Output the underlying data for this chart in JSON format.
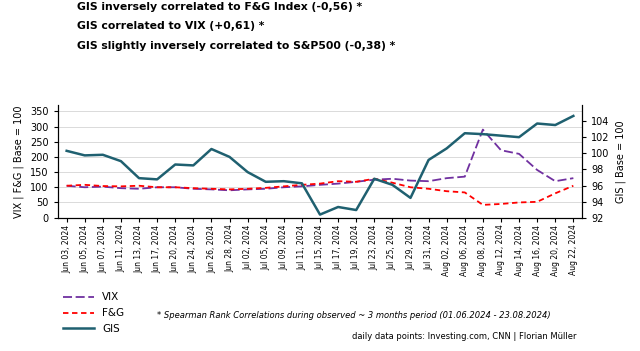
{
  "title_lines": [
    "GIS inversely correlated to F&G Index (-0,56) *",
    "GIS correlated to VIX (+0,61) *",
    "GIS slightly inversely correlated to S&P500 (-0,38) *"
  ],
  "ylabel_left": "VIX | F&G | Base = 100",
  "ylabel_right": "GIS | Base = 100",
  "ylim_left": [
    0,
    370
  ],
  "ylim_right": [
    92,
    106
  ],
  "footnote1": "* Spearman Rank Correlations during observed ~ 3 months period (01.06.2024 - 23.08.2024)",
  "footnote2": "daily data points: Investing.com, CNN | Florian Müller",
  "xtick_labels": [
    "Jun 03, 2024",
    "Jun 05, 2024",
    "Jun 07, 2024",
    "Jun 11, 2024",
    "Jun 13, 2024",
    "Jun 17, 2024",
    "Jun 20, 2024",
    "Jun 24, 2024",
    "Jun 26, 2024",
    "Jun 28, 2024",
    "Jul 02, 2024",
    "Jul 05, 2024",
    "Jul 09, 2024",
    "Jul 11, 2024",
    "Jul 15, 2024",
    "Jul 17, 2024",
    "Jul 19, 2024",
    "Jul 23, 2024",
    "Jul 25, 2024",
    "Jul 29, 2024",
    "Jul 31, 2024",
    "Aug 02, 2024",
    "Aug 06, 2024",
    "Aug 08, 2024",
    "Aug 12, 2024",
    "Aug 14, 2024",
    "Aug 16, 2024",
    "Aug 20, 2024",
    "Aug 22, 2024"
  ],
  "vix_y": [
    105,
    100,
    102,
    97,
    95,
    100,
    100,
    95,
    93,
    90,
    93,
    95,
    100,
    103,
    108,
    112,
    118,
    125,
    128,
    122,
    120,
    130,
    135,
    290,
    222,
    210,
    157,
    120,
    130
  ],
  "fg_y": [
    105,
    108,
    104,
    103,
    105,
    100,
    100,
    97,
    95,
    93,
    95,
    98,
    103,
    108,
    112,
    120,
    118,
    128,
    115,
    100,
    95,
    87,
    83,
    42,
    45,
    50,
    52,
    80,
    105
  ],
  "gis_y": [
    220,
    205,
    207,
    186,
    130,
    126,
    175,
    172,
    226,
    200,
    150,
    118,
    120,
    113,
    10,
    35,
    25,
    128,
    108,
    65,
    190,
    228,
    278,
    275,
    270,
    265,
    310,
    305,
    335
  ],
  "vix_color": "#7030A0",
  "fg_color": "#FF0000",
  "gis_color": "#1F6070",
  "background_color": "#FFFFFF",
  "grid_color": "#CCCCCC",
  "legend_labels": [
    "VIX",
    "F&G",
    "GIS"
  ]
}
